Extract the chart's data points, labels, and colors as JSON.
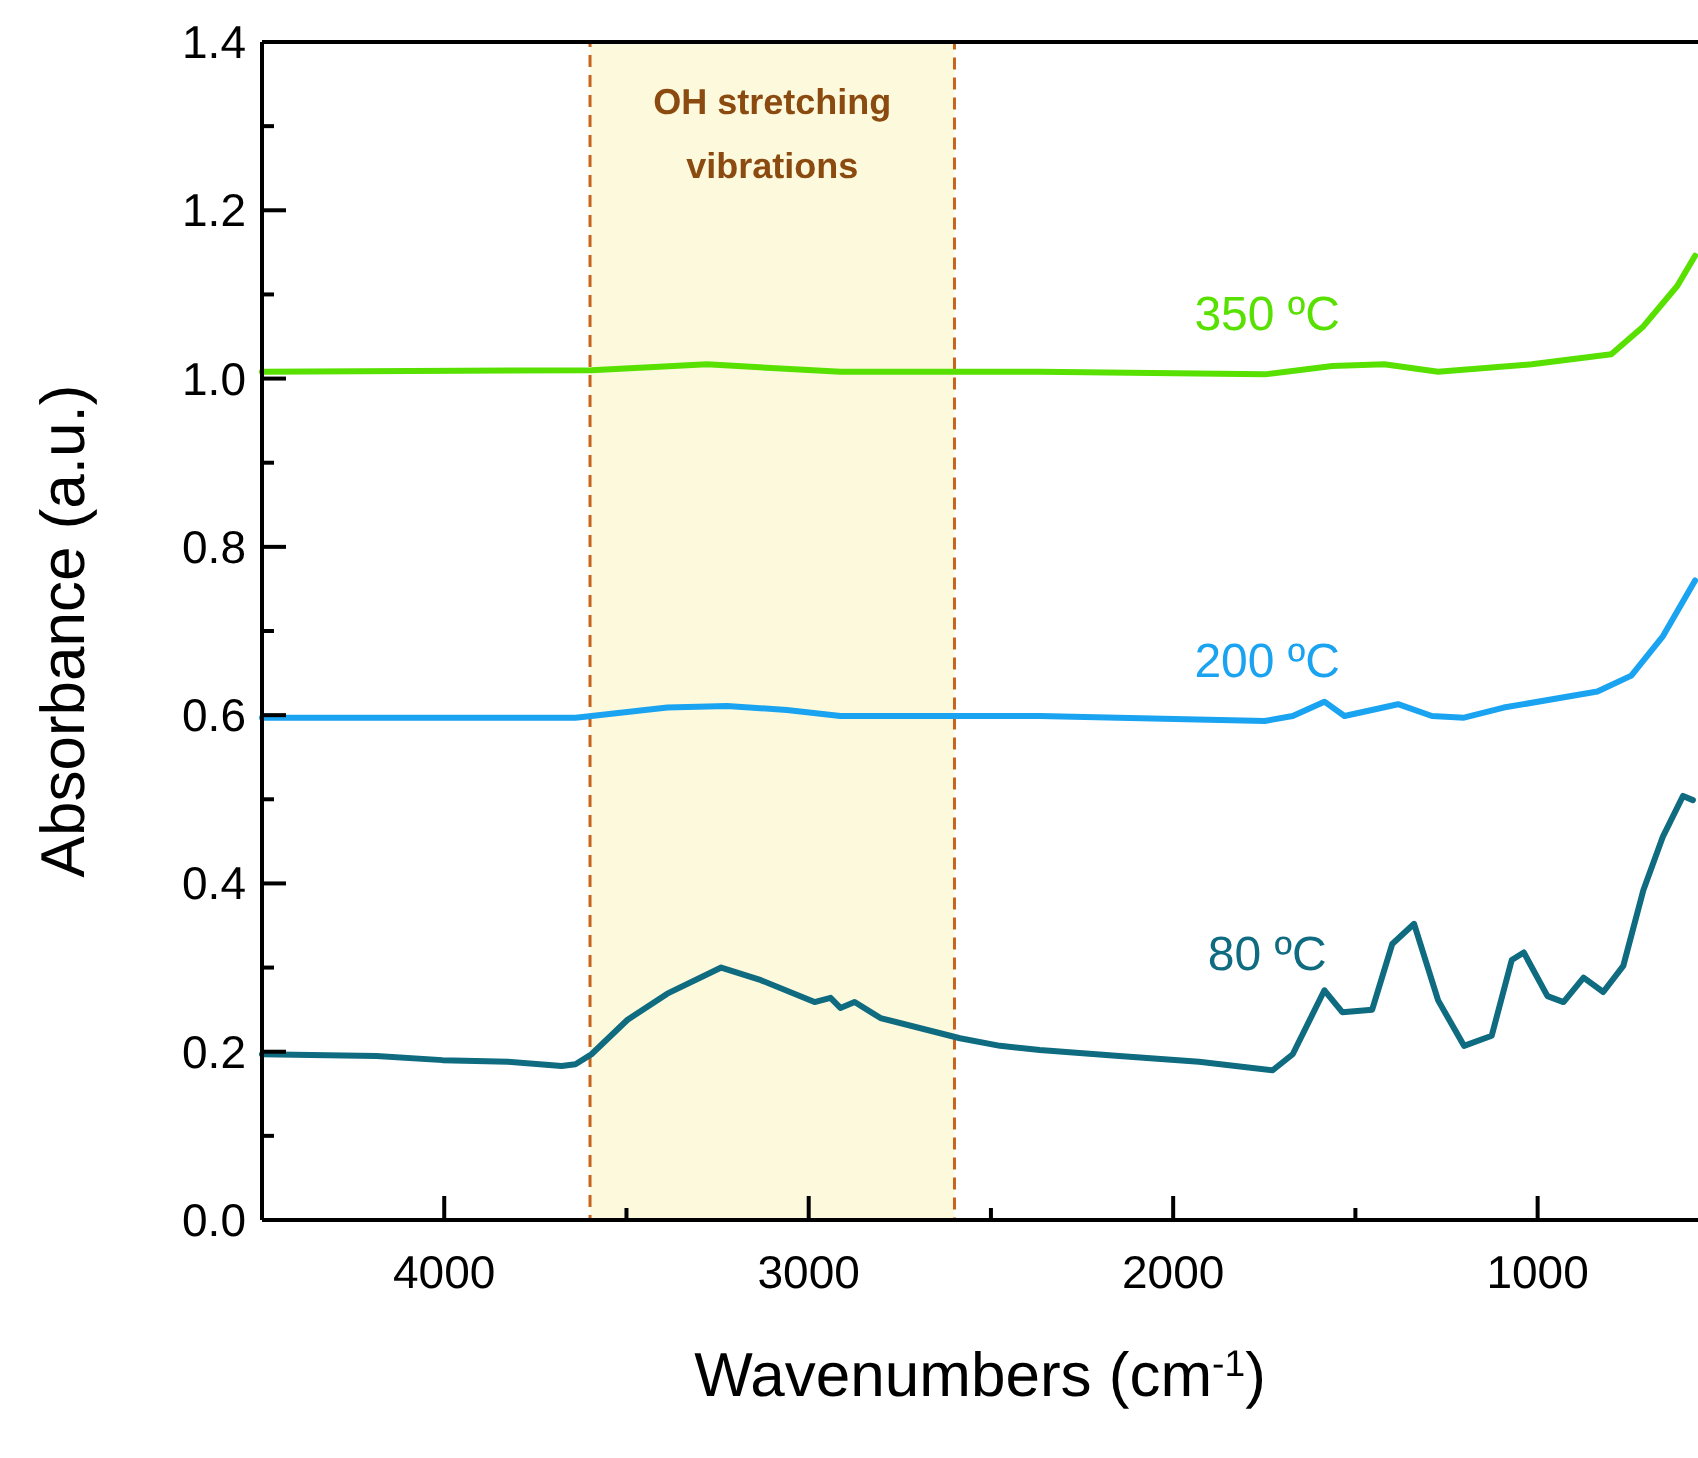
{
  "chart_data": {
    "type": "line",
    "xlabel": "Wavenumbers (cm$^{-1}$)",
    "ylabel": "Absorbance (a.u.)",
    "xlim": [
      4500,
      560
    ],
    "ylim": [
      0,
      1.4
    ],
    "xticks": [
      4000,
      {
        "value": 3500,
        "label": null
      },
      3000,
      {
        "value": 2500,
        "label": null
      },
      2000,
      {
        "value": 1500,
        "label": null
      },
      1000
    ],
    "yticks": [
      {
        "value": 0,
        "label": "0.0"
      },
      {
        "value": 0.1,
        "label": null
      },
      0.2,
      {
        "value": 0.3,
        "label": null
      },
      0.4,
      {
        "value": 0.5,
        "label": null
      },
      0.6,
      {
        "value": 0.7,
        "label": null
      },
      0.8,
      {
        "value": 0.9,
        "label": null
      },
      {
        "value": 1,
        "label": "1.0"
      },
      {
        "value": 1.1,
        "label": null
      },
      1.2,
      {
        "value": 1.3,
        "label": null
      },
      1.4
    ],
    "grid": false,
    "line_style": "solid",
    "marker": "none",
    "bands": [
      {
        "axis": "x",
        "from": 3600,
        "to": 2600,
        "label": "OH stretching vibrations",
        "color": "#fcf9dc"
      }
    ],
    "series": [
      {
        "name": "350 ºC",
        "color": "#58e000",
        "x": [
          4500,
          3596,
          3279,
          2913,
          2475,
          2366,
          1749,
          1563,
          1421,
          1273,
          1016,
          798,
          710,
          617,
          568
        ],
        "values": [
          1.008,
          1.01,
          1.017,
          1.008,
          1.008,
          1.008,
          1.005,
          1.015,
          1.017,
          1.008,
          1.017,
          1.029,
          1.062,
          1.11,
          1.146
        ]
      },
      {
        "name": "200 ºC",
        "color": "#1aa3f0",
        "x": [
          4500,
          3640,
          3596,
          3388,
          3224,
          3060,
          2913,
          2366,
          1749,
          1672,
          1585,
          1530,
          1383,
          1290,
          1202,
          1093,
          836,
          743,
          656,
          568
        ],
        "values": [
          0.597,
          0.597,
          0.599,
          0.609,
          0.611,
          0.606,
          0.599,
          0.599,
          0.593,
          0.599,
          0.616,
          0.599,
          0.613,
          0.599,
          0.597,
          0.609,
          0.628,
          0.647,
          0.694,
          0.76
        ]
      },
      {
        "name": "80 ºC",
        "color": "#0e6b80",
        "x": [
          4500,
          4186,
          4005,
          3825,
          3678,
          3640,
          3596,
          3497,
          3388,
          3240,
          3131,
          2984,
          2940,
          2913,
          2874,
          2803,
          2585,
          2475,
          2366,
          2148,
          1929,
          1727,
          1672,
          1585,
          1536,
          1454,
          1399,
          1339,
          1273,
          1202,
          1126,
          1071,
          1038,
          973,
          929,
          874,
          820,
          765,
          710,
          656,
          601,
          574
        ],
        "values": [
          0.197,
          0.195,
          0.19,
          0.188,
          0.183,
          0.185,
          0.197,
          0.238,
          0.269,
          0.3,
          0.285,
          0.259,
          0.264,
          0.252,
          0.259,
          0.24,
          0.216,
          0.207,
          0.202,
          0.195,
          0.188,
          0.178,
          0.197,
          0.273,
          0.247,
          0.25,
          0.328,
          0.352,
          0.261,
          0.207,
          0.219,
          0.309,
          0.318,
          0.266,
          0.259,
          0.288,
          0.271,
          0.302,
          0.392,
          0.456,
          0.504,
          0.499
        ]
      }
    ]
  }
}
